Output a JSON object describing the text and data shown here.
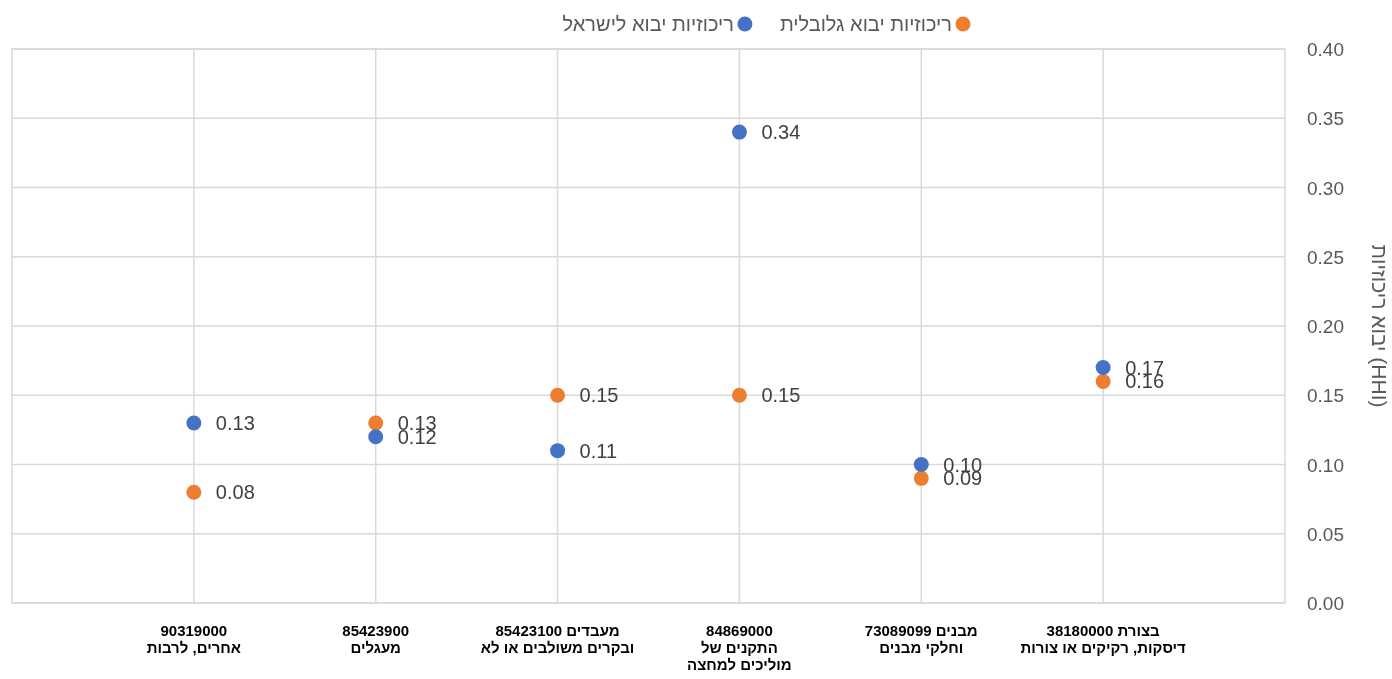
{
  "chart_data": {
    "type": "scatter",
    "ylabel": "ריכוזיות יבוא (HHI)",
    "categories": [
      "90319000\nאחרים, לרבות",
      "85423900\nמעגלים",
      "85423100 מעבדים\nובקרים משולבים או לא",
      "84869000\nהתקנים של\nמוליכים למחצה",
      "73089099 מבנים\nוחלקי מבנים",
      "38180000 בצורת\nדיסקות, רקיקים או צורות"
    ],
    "series": [
      {
        "name": "ריכוזיות יבוא גלובלית",
        "color": "#ed7d31",
        "values": [
          0.08,
          0.13,
          0.15,
          0.15,
          0.09,
          0.16
        ],
        "value_labels": [
          "0.08",
          "0.13",
          "0.15",
          "0.15",
          "0.09",
          "0.16"
        ]
      },
      {
        "name": "ריכוזיות יבוא לישראל",
        "color": "#4472c4",
        "values": [
          0.13,
          0.12,
          0.11,
          0.34,
          0.1,
          0.17
        ],
        "value_labels": [
          "0.13",
          "0.12",
          "0.11",
          "0.34",
          "0.10",
          "0.17"
        ]
      }
    ],
    "ylim": [
      0,
      0.4
    ],
    "yticks": [
      {
        "value": 0,
        "label": "0.00"
      },
      {
        "value": 0.05,
        "label": "0.05"
      },
      {
        "value": 0.1,
        "label": "0.10"
      },
      {
        "value": 0.15,
        "label": "0.15"
      },
      {
        "value": 0.2,
        "label": "0.20"
      },
      {
        "value": 0.25,
        "label": "0.25"
      },
      {
        "value": 0.3,
        "label": "0.30"
      },
      {
        "value": 0.35,
        "label": "0.35"
      },
      {
        "value": 0.4,
        "label": "0.40"
      }
    ],
    "grid": true,
    "legend": "top",
    "marker": "circle"
  }
}
